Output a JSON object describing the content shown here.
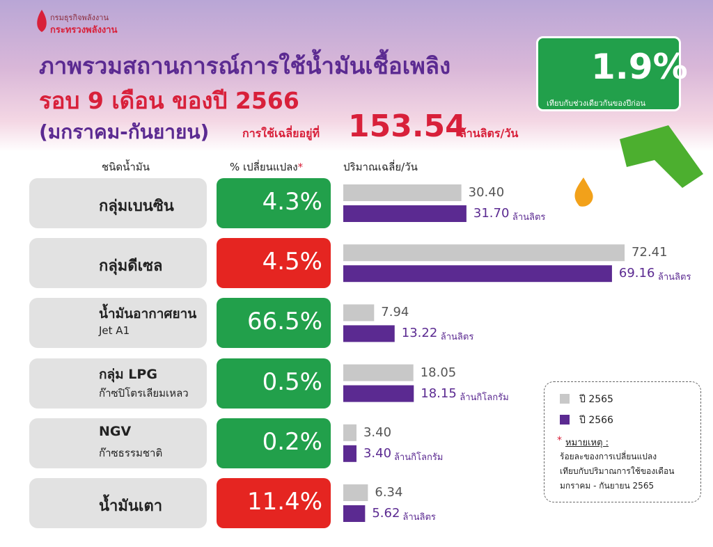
{
  "header": {
    "org": "กรมธุรกิจพลังงาน",
    "ministry": "กระทรวงพลังงาน",
    "title": [
      "ภาพรวมสถานการณ์การใช้น้ำมันเชื้อเพลิง",
      "รอบ 9 เดือน ของปี 2566",
      "(มกราคม-กันยายน)"
    ],
    "average_label": "การใช้เฉลี่ยอยู่ที่",
    "average_value": "153.54",
    "average_unit": "ล้านลิตร/วัน"
  },
  "badge": {
    "value": "1.9%",
    "note": "เทียบกับช่วงเดียวกันของปีก่อน"
  },
  "columns": [
    "ชนิดน้ำมัน",
    "% เปลี่ยนแปลง",
    "*",
    "ปริมาณเฉลี่ย/วัน"
  ],
  "series": [
    {
      "name": "ปี 2565",
      "color": "#c8c8c8"
    },
    {
      "name": "ปี 2566",
      "color": "#5b2a91"
    }
  ],
  "rows": [
    {
      "name": [
        "กลุ่มเบนซิน"
      ],
      "change": "4.3%",
      "arrow": "up",
      "color": "#22a04b",
      "values": [
        {
          "value": 30.4,
          "label": "30.40"
        },
        {
          "value": 31.7,
          "label": "31.70"
        }
      ],
      "unit": "ล้านลิตร"
    },
    {
      "name": [
        "กลุ่มดีเซล"
      ],
      "change": "4.5%",
      "arrow": "down",
      "color": "#e52521",
      "values": [
        72.41,
        69.16
      ],
      "unit": "ล้านลิตร"
    },
    {
      "name": [
        "น้ำมันอากาศยาน",
        "Jet A1"
      ],
      "change": "66.5%",
      "arrow": "up",
      "color": "#22a04b",
      "values": [
        7.94,
        13.22
      ],
      "unit": "ล้านลิตร"
    },
    {
      "name": [
        "กลุ่ม LPG",
        "ก๊าซปิโตรเลียมเหลว"
      ],
      "change": "0.5%",
      "arrow": "up",
      "color": "#22a04b",
      "values": [
        18.05,
        18.15
      ],
      "unit": "ล้านกิโลกรัม"
    },
    {
      "name": [
        "NGV",
        "ก๊าซธรรมชาติ"
      ],
      "change": "0.2%",
      "arrow": "up",
      "color": "#22a04b",
      "values": [
        {
          "value": 3.4,
          "label": "3.40"
        },
        {
          "value": 3.4,
          "label": "3.40"
        }
      ],
      "unit": "ล้านกิโลกรัม"
    },
    {
      "name": [
        "น้ำมันเตา"
      ],
      "change": "11.4%",
      "arrow": "down",
      "color": "#e52521",
      "values": [
        6.34,
        5.62
      ],
      "unit": "ล้านลิตร"
    }
  ],
  "note": {
    "mark": "*",
    "title": "หมายเหตุ :",
    "lines": [
      "ร้อยละของการเปลี่ยนแปลง",
      "เทียบกับปริมาณการใช้ของเดือน",
      "มกราคม - กันยายน 2565"
    ]
  }
}
